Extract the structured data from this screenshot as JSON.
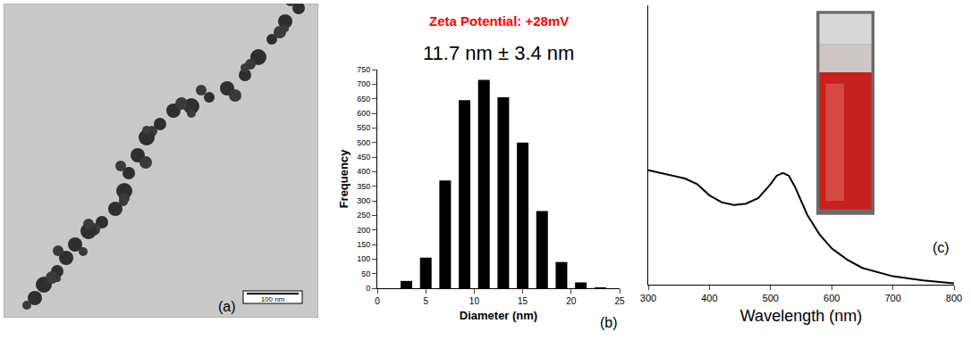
{
  "image_panel": {
    "label": "(a)",
    "scale_bar": "100 nm"
  },
  "chart_data": [
    {
      "type": "histogram",
      "annotations": [
        {
          "text": "Zeta Potential: +28mV",
          "color": "#ff0000"
        },
        {
          "text": "11.7 nm ± 3.4 nm"
        },
        {
          "text": "(b)"
        }
      ],
      "x_label": "Diameter (nm)",
      "y_label": "Frequency",
      "bins": [
        2,
        4,
        6,
        8,
        10,
        12,
        14,
        16,
        18,
        20,
        22,
        24
      ],
      "values": [
        25,
        105,
        370,
        645,
        715,
        655,
        500,
        265,
        90,
        20,
        3
      ],
      "color": "#000000",
      "xlim": [
        0,
        25
      ],
      "xticks": [
        0,
        5,
        10,
        15,
        20,
        25
      ],
      "ylim": [
        0,
        750
      ],
      "yticks": [
        0,
        50,
        100,
        150,
        200,
        250,
        300,
        350,
        400,
        450,
        500,
        550,
        600,
        650,
        700,
        750
      ],
      "grid": false
    },
    {
      "type": "line",
      "annotations": [
        {
          "text": "(c)"
        }
      ],
      "x_label": "Wavelength (nm)",
      "x": [
        300,
        320,
        340,
        360,
        380,
        400,
        420,
        440,
        460,
        480,
        500,
        510,
        520,
        530,
        540,
        550,
        560,
        580,
        600,
        625,
        650,
        700,
        750,
        800
      ],
      "values": [
        0.41,
        0.4,
        0.39,
        0.38,
        0.36,
        0.32,
        0.295,
        0.285,
        0.29,
        0.31,
        0.36,
        0.39,
        0.4,
        0.39,
        0.35,
        0.3,
        0.25,
        0.18,
        0.13,
        0.09,
        0.06,
        0.03,
        0.015,
        0.005
      ],
      "color": "#000000",
      "xlim": [
        300,
        800
      ],
      "xticks": [
        300,
        400,
        500,
        600,
        700,
        800
      ],
      "ylim": [
        0,
        1
      ],
      "yticks": [],
      "tick_labels": "x",
      "grid": false
    }
  ]
}
